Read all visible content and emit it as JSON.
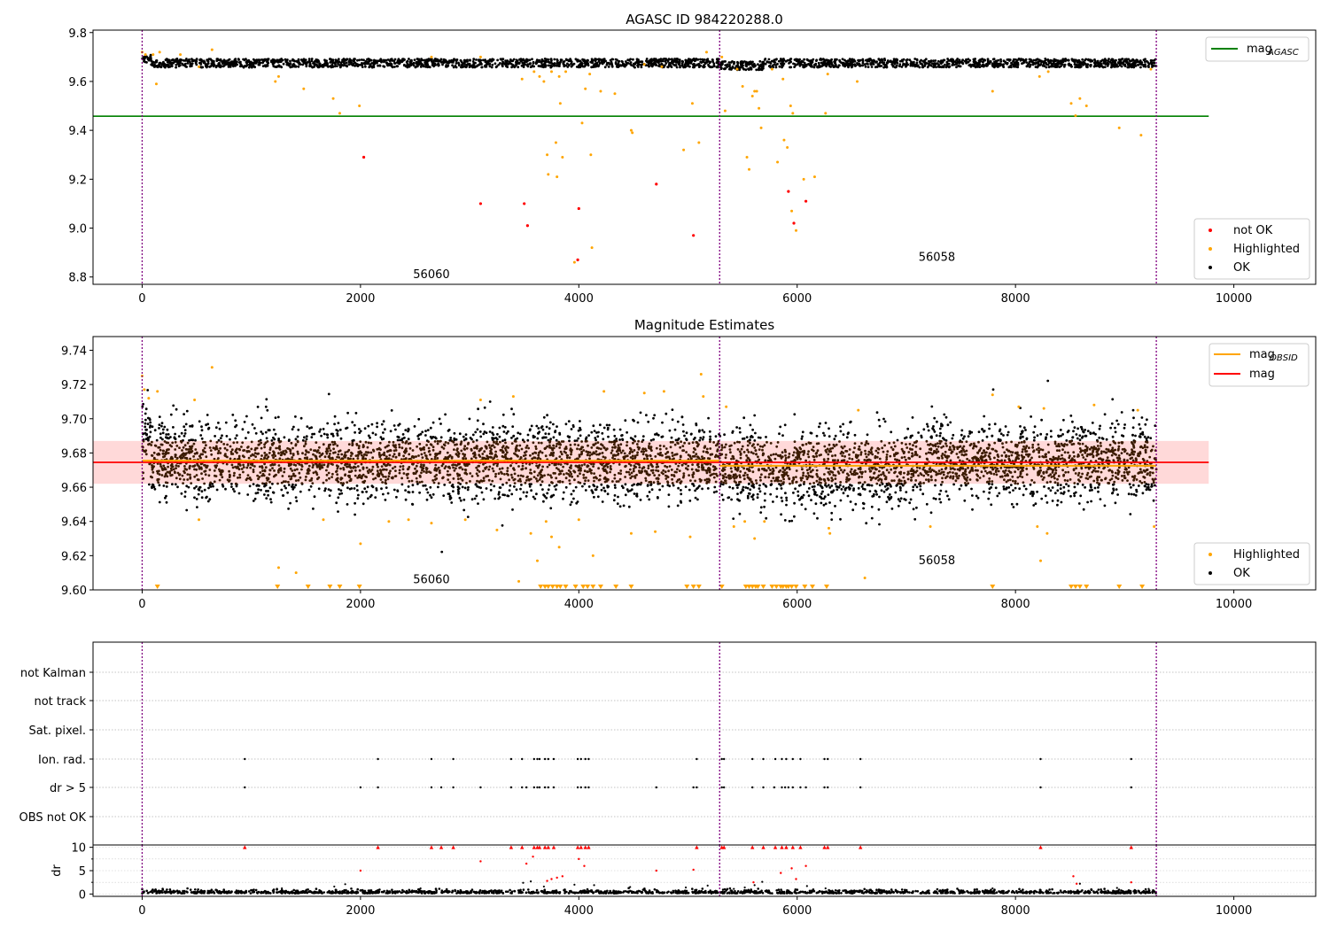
{
  "chart_data": [
    {
      "type": "scatter",
      "title": "AGASC ID 984220288.0",
      "xlim": [
        -450,
        10750
      ],
      "ylim": [
        8.77,
        9.81
      ],
      "xticks": [
        0,
        2000,
        4000,
        6000,
        8000,
        10000
      ],
      "yticks": [
        8.8,
        9.0,
        9.2,
        9.4,
        9.6,
        9.8
      ],
      "grid": false,
      "vlines": [
        0,
        5290,
        9290
      ],
      "obsid_labels": [
        {
          "text": "56060",
          "x": 2650,
          "y": 8.81
        },
        {
          "text": "56058",
          "x": 7280,
          "y": 8.88
        }
      ],
      "hline": {
        "name": "mag_AGASC",
        "y": 9.458,
        "xmin": -450,
        "xmax": 9770,
        "color": "#008000"
      },
      "ok_band": {
        "x_range": [
          0,
          9290
        ],
        "center": 9.675,
        "spread": 0.035
      },
      "highlighted": [
        [
          0,
          9.72
        ],
        [
          30,
          9.71
        ],
        [
          100,
          9.71
        ],
        [
          130,
          9.59
        ],
        [
          160,
          9.72
        ],
        [
          350,
          9.71
        ],
        [
          520,
          9.66
        ],
        [
          640,
          9.73
        ],
        [
          1220,
          9.6
        ],
        [
          1250,
          9.62
        ],
        [
          1480,
          9.57
        ],
        [
          1750,
          9.53
        ],
        [
          1810,
          9.47
        ],
        [
          1990,
          9.5
        ],
        [
          2650,
          9.7
        ],
        [
          3100,
          9.7
        ],
        [
          3480,
          9.61
        ],
        [
          3590,
          9.64
        ],
        [
          3640,
          9.62
        ],
        [
          3680,
          9.6
        ],
        [
          3710,
          9.3
        ],
        [
          3720,
          9.22
        ],
        [
          3750,
          9.64
        ],
        [
          3790,
          9.35
        ],
        [
          3800,
          9.21
        ],
        [
          3820,
          9.62
        ],
        [
          3830,
          9.51
        ],
        [
          3850,
          9.29
        ],
        [
          3880,
          9.64
        ],
        [
          3960,
          8.86
        ],
        [
          4030,
          9.43
        ],
        [
          4060,
          9.57
        ],
        [
          4100,
          9.63
        ],
        [
          4110,
          9.3
        ],
        [
          4120,
          8.92
        ],
        [
          4200,
          9.56
        ],
        [
          4330,
          9.55
        ],
        [
          4480,
          9.4
        ],
        [
          4490,
          9.39
        ],
        [
          4600,
          9.67
        ],
        [
          4760,
          9.66
        ],
        [
          4960,
          9.32
        ],
        [
          5040,
          9.51
        ],
        [
          5100,
          9.35
        ],
        [
          5170,
          9.72
        ],
        [
          5310,
          9.7
        ],
        [
          5340,
          9.48
        ],
        [
          5450,
          9.65
        ],
        [
          5500,
          9.58
        ],
        [
          5540,
          9.29
        ],
        [
          5560,
          9.24
        ],
        [
          5590,
          9.54
        ],
        [
          5610,
          9.56
        ],
        [
          5630,
          9.56
        ],
        [
          5650,
          9.49
        ],
        [
          5670,
          9.41
        ],
        [
          5770,
          9.65
        ],
        [
          5820,
          9.27
        ],
        [
          5870,
          9.61
        ],
        [
          5880,
          9.36
        ],
        [
          5910,
          9.33
        ],
        [
          5940,
          9.5
        ],
        [
          5950,
          9.07
        ],
        [
          5960,
          9.47
        ],
        [
          5990,
          8.99
        ],
        [
          6060,
          9.2
        ],
        [
          6160,
          9.21
        ],
        [
          6260,
          9.47
        ],
        [
          6280,
          9.63
        ],
        [
          6550,
          9.6
        ],
        [
          7790,
          9.56
        ],
        [
          8220,
          9.62
        ],
        [
          8300,
          9.64
        ],
        [
          8510,
          9.51
        ],
        [
          8550,
          9.46
        ],
        [
          8590,
          9.53
        ],
        [
          8650,
          9.5
        ],
        [
          8950,
          9.41
        ],
        [
          9150,
          9.38
        ],
        [
          9240,
          9.65
        ]
      ],
      "not_ok": [
        [
          2030,
          9.29
        ],
        [
          3100,
          9.1
        ],
        [
          3500,
          9.1
        ],
        [
          3530,
          9.01
        ],
        [
          4000,
          9.08
        ],
        [
          3990,
          8.87
        ],
        [
          4710,
          9.18
        ],
        [
          5050,
          8.97
        ],
        [
          5920,
          9.15
        ],
        [
          5970,
          9.02
        ],
        [
          6080,
          9.11
        ]
      ],
      "legends": [
        {
          "position": "top-right",
          "entries": [
            {
              "label": "mag",
              "subscript": "AGASC",
              "kind": "line",
              "color": "#008000"
            }
          ]
        },
        {
          "position": "bottom-right",
          "entries": [
            {
              "label": "not OK",
              "kind": "dot",
              "color": "#ff0000"
            },
            {
              "label": "Highlighted",
              "kind": "dot",
              "color": "#ffa500"
            },
            {
              "label": "OK",
              "kind": "dot",
              "color": "#000000"
            }
          ]
        }
      ]
    },
    {
      "type": "scatter",
      "title": "Magnitude Estimates",
      "xlim": [
        -450,
        10750
      ],
      "ylim": [
        9.6,
        9.748
      ],
      "xticks": [
        0,
        2000,
        4000,
        6000,
        8000,
        10000
      ],
      "yticks": [
        9.6,
        9.62,
        9.64,
        9.66,
        9.68,
        9.7,
        9.72,
        9.74
      ],
      "grid": false,
      "vlines": [
        0,
        5290,
        9290
      ],
      "obsid_labels": [
        {
          "text": "56060",
          "x": 2650,
          "y": 9.606
        },
        {
          "text": "56058",
          "x": 7280,
          "y": 9.617
        }
      ],
      "mag_line": {
        "name": "mag",
        "y": 9.6745,
        "xmin": -450,
        "xmax": 9770,
        "color": "#ff0000",
        "band": [
          9.662,
          9.687
        ]
      },
      "obsid_segments": [
        {
          "x": [
            0,
            5290
          ],
          "y": 9.6755
        },
        {
          "x": [
            5290,
            9290
          ],
          "y": 9.6725
        }
      ],
      "ok_cloud": {
        "x_range": [
          0,
          9290
        ],
        "center": 9.675,
        "spread": 0.011
      },
      "highlighted": [
        [
          0,
          9.725
        ],
        [
          20,
          9.717
        ],
        [
          60,
          9.712
        ],
        [
          140,
          9.716
        ],
        [
          480,
          9.711
        ],
        [
          520,
          9.641
        ],
        [
          640,
          9.73
        ],
        [
          1250,
          9.613
        ],
        [
          1410,
          9.61
        ],
        [
          1660,
          9.641
        ],
        [
          2000,
          9.627
        ],
        [
          2260,
          9.64
        ],
        [
          2440,
          9.641
        ],
        [
          2650,
          9.639
        ],
        [
          2960,
          9.641
        ],
        [
          3100,
          9.711
        ],
        [
          3250,
          9.635
        ],
        [
          3400,
          9.713
        ],
        [
          3450,
          9.605
        ],
        [
          3560,
          9.633
        ],
        [
          3620,
          9.617
        ],
        [
          3700,
          9.64
        ],
        [
          3750,
          9.631
        ],
        [
          3820,
          9.625
        ],
        [
          4000,
          9.641
        ],
        [
          4130,
          9.62
        ],
        [
          4230,
          9.716
        ],
        [
          4480,
          9.633
        ],
        [
          4600,
          9.715
        ],
        [
          4700,
          9.634
        ],
        [
          4780,
          9.716
        ],
        [
          5020,
          9.631
        ],
        [
          5120,
          9.726
        ],
        [
          5140,
          9.713
        ],
        [
          5350,
          9.707
        ],
        [
          5420,
          9.637
        ],
        [
          5520,
          9.64
        ],
        [
          5610,
          9.63
        ],
        [
          5700,
          9.64
        ],
        [
          6290,
          9.636
        ],
        [
          6300,
          9.633
        ],
        [
          6560,
          9.705
        ],
        [
          6620,
          9.607
        ],
        [
          7220,
          9.637
        ],
        [
          7790,
          9.714
        ],
        [
          8030,
          9.707
        ],
        [
          8200,
          9.637
        ],
        [
          8230,
          9.617
        ],
        [
          8260,
          9.706
        ],
        [
          8290,
          9.633
        ],
        [
          8720,
          9.708
        ],
        [
          9120,
          9.705
        ],
        [
          9270,
          9.637
        ]
      ],
      "below_range_markers": [
        140,
        1240,
        1520,
        1720,
        1810,
        1990,
        3650,
        3690,
        3720,
        3760,
        3800,
        3830,
        3880,
        3970,
        4040,
        4080,
        4130,
        4200,
        4340,
        4480,
        4990,
        5050,
        5100,
        5310,
        5530,
        5560,
        5590,
        5620,
        5640,
        5690,
        5770,
        5810,
        5850,
        5870,
        5900,
        5920,
        5950,
        5990,
        6070,
        6140,
        6270,
        7790,
        8510,
        8550,
        8590,
        8650,
        8950,
        9160
      ],
      "legends": [
        {
          "position": "top-right",
          "entries": [
            {
              "label": "mag",
              "subscript": "OBSID",
              "kind": "line",
              "color": "#ffa500"
            },
            {
              "label": "mag",
              "kind": "line",
              "color": "#ff0000"
            }
          ]
        },
        {
          "position": "bottom-right",
          "entries": [
            {
              "label": "Highlighted",
              "kind": "dot",
              "color": "#ffa500"
            },
            {
              "label": "OK",
              "kind": "dot",
              "color": "#000000"
            }
          ]
        }
      ]
    },
    {
      "type": "scatter",
      "title": "",
      "xlim": [
        -450,
        10750
      ],
      "xticks": [
        0,
        2000,
        4000,
        6000,
        8000,
        10000
      ],
      "vlines": [
        0,
        5290,
        9290
      ],
      "flag_rows": [
        "not Kalman",
        "not track",
        "Sat. pixel.",
        "Ion. rad.",
        "dr > 5",
        "OBS not OK"
      ],
      "flag_points": {
        "Ion. rad.": [
          940,
          2160,
          2650,
          2850,
          3380,
          3480,
          3590,
          3620,
          3640,
          3690,
          3720,
          3770,
          3990,
          4020,
          4060,
          4090,
          5080,
          5310,
          5330,
          5590,
          5690,
          5800,
          5860,
          5900,
          5960,
          6030,
          6250,
          6280,
          6580,
          8230,
          9060
        ],
        "dr > 5": [
          940,
          2000,
          2160,
          2650,
          2740,
          2850,
          3100,
          3380,
          3480,
          3520,
          3590,
          3620,
          3640,
          3690,
          3720,
          3770,
          3990,
          4020,
          4060,
          4090,
          4710,
          5050,
          5080,
          5310,
          5330,
          5590,
          5690,
          5790,
          5860,
          5890,
          5920,
          5960,
          6030,
          6080,
          6250,
          6280,
          6580,
          8230,
          9060
        ]
      },
      "dr": {
        "ylim": [
          -0.5,
          10.5
        ],
        "yticks": [
          0,
          5,
          10
        ],
        "ylabel": "dr",
        "baseline_spread": 0.35,
        "capped": [
          940,
          2160,
          2650,
          2740,
          2850,
          3380,
          3480,
          3590,
          3620,
          3640,
          3690,
          3720,
          3770,
          3990,
          4020,
          4060,
          4090,
          5080,
          5310,
          5330,
          5590,
          5690,
          5800,
          5860,
          5900,
          5960,
          6030,
          6250,
          6280,
          6580,
          8230,
          9060
        ],
        "red_points": [
          [
            2000,
            5.0
          ],
          [
            3100,
            7.0
          ],
          [
            3520,
            6.5
          ],
          [
            3580,
            8.0
          ],
          [
            3710,
            2.8
          ],
          [
            3750,
            3.2
          ],
          [
            3800,
            3.5
          ],
          [
            3850,
            3.8
          ],
          [
            4000,
            7.5
          ],
          [
            4050,
            6.0
          ],
          [
            4710,
            5.0
          ],
          [
            5050,
            5.2
          ],
          [
            5600,
            2.5
          ],
          [
            5850,
            4.5
          ],
          [
            5950,
            5.5
          ],
          [
            5990,
            3.2
          ],
          [
            6080,
            6.0
          ],
          [
            8530,
            3.8
          ],
          [
            8560,
            2.2
          ],
          [
            9060,
            2.5
          ]
        ],
        "black_points": [
          [
            1280,
            1.2
          ],
          [
            1760,
            1.6
          ],
          [
            1860,
            2.1
          ],
          [
            2550,
            1.2
          ],
          [
            3490,
            2.4
          ],
          [
            3560,
            2.7
          ],
          [
            3680,
            1.6
          ],
          [
            3960,
            2.0
          ],
          [
            4140,
            1.9
          ],
          [
            4470,
            1.5
          ],
          [
            4980,
            1.4
          ],
          [
            5180,
            1.8
          ],
          [
            5420,
            1.1
          ],
          [
            5520,
            1.4
          ],
          [
            5610,
            1.9
          ],
          [
            5680,
            2.6
          ],
          [
            6090,
            1.7
          ],
          [
            6260,
            1.2
          ],
          [
            7790,
            1.2
          ],
          [
            8590,
            2.2
          ],
          [
            8930,
            1.3
          ],
          [
            9220,
            1.1
          ]
        ]
      }
    }
  ]
}
